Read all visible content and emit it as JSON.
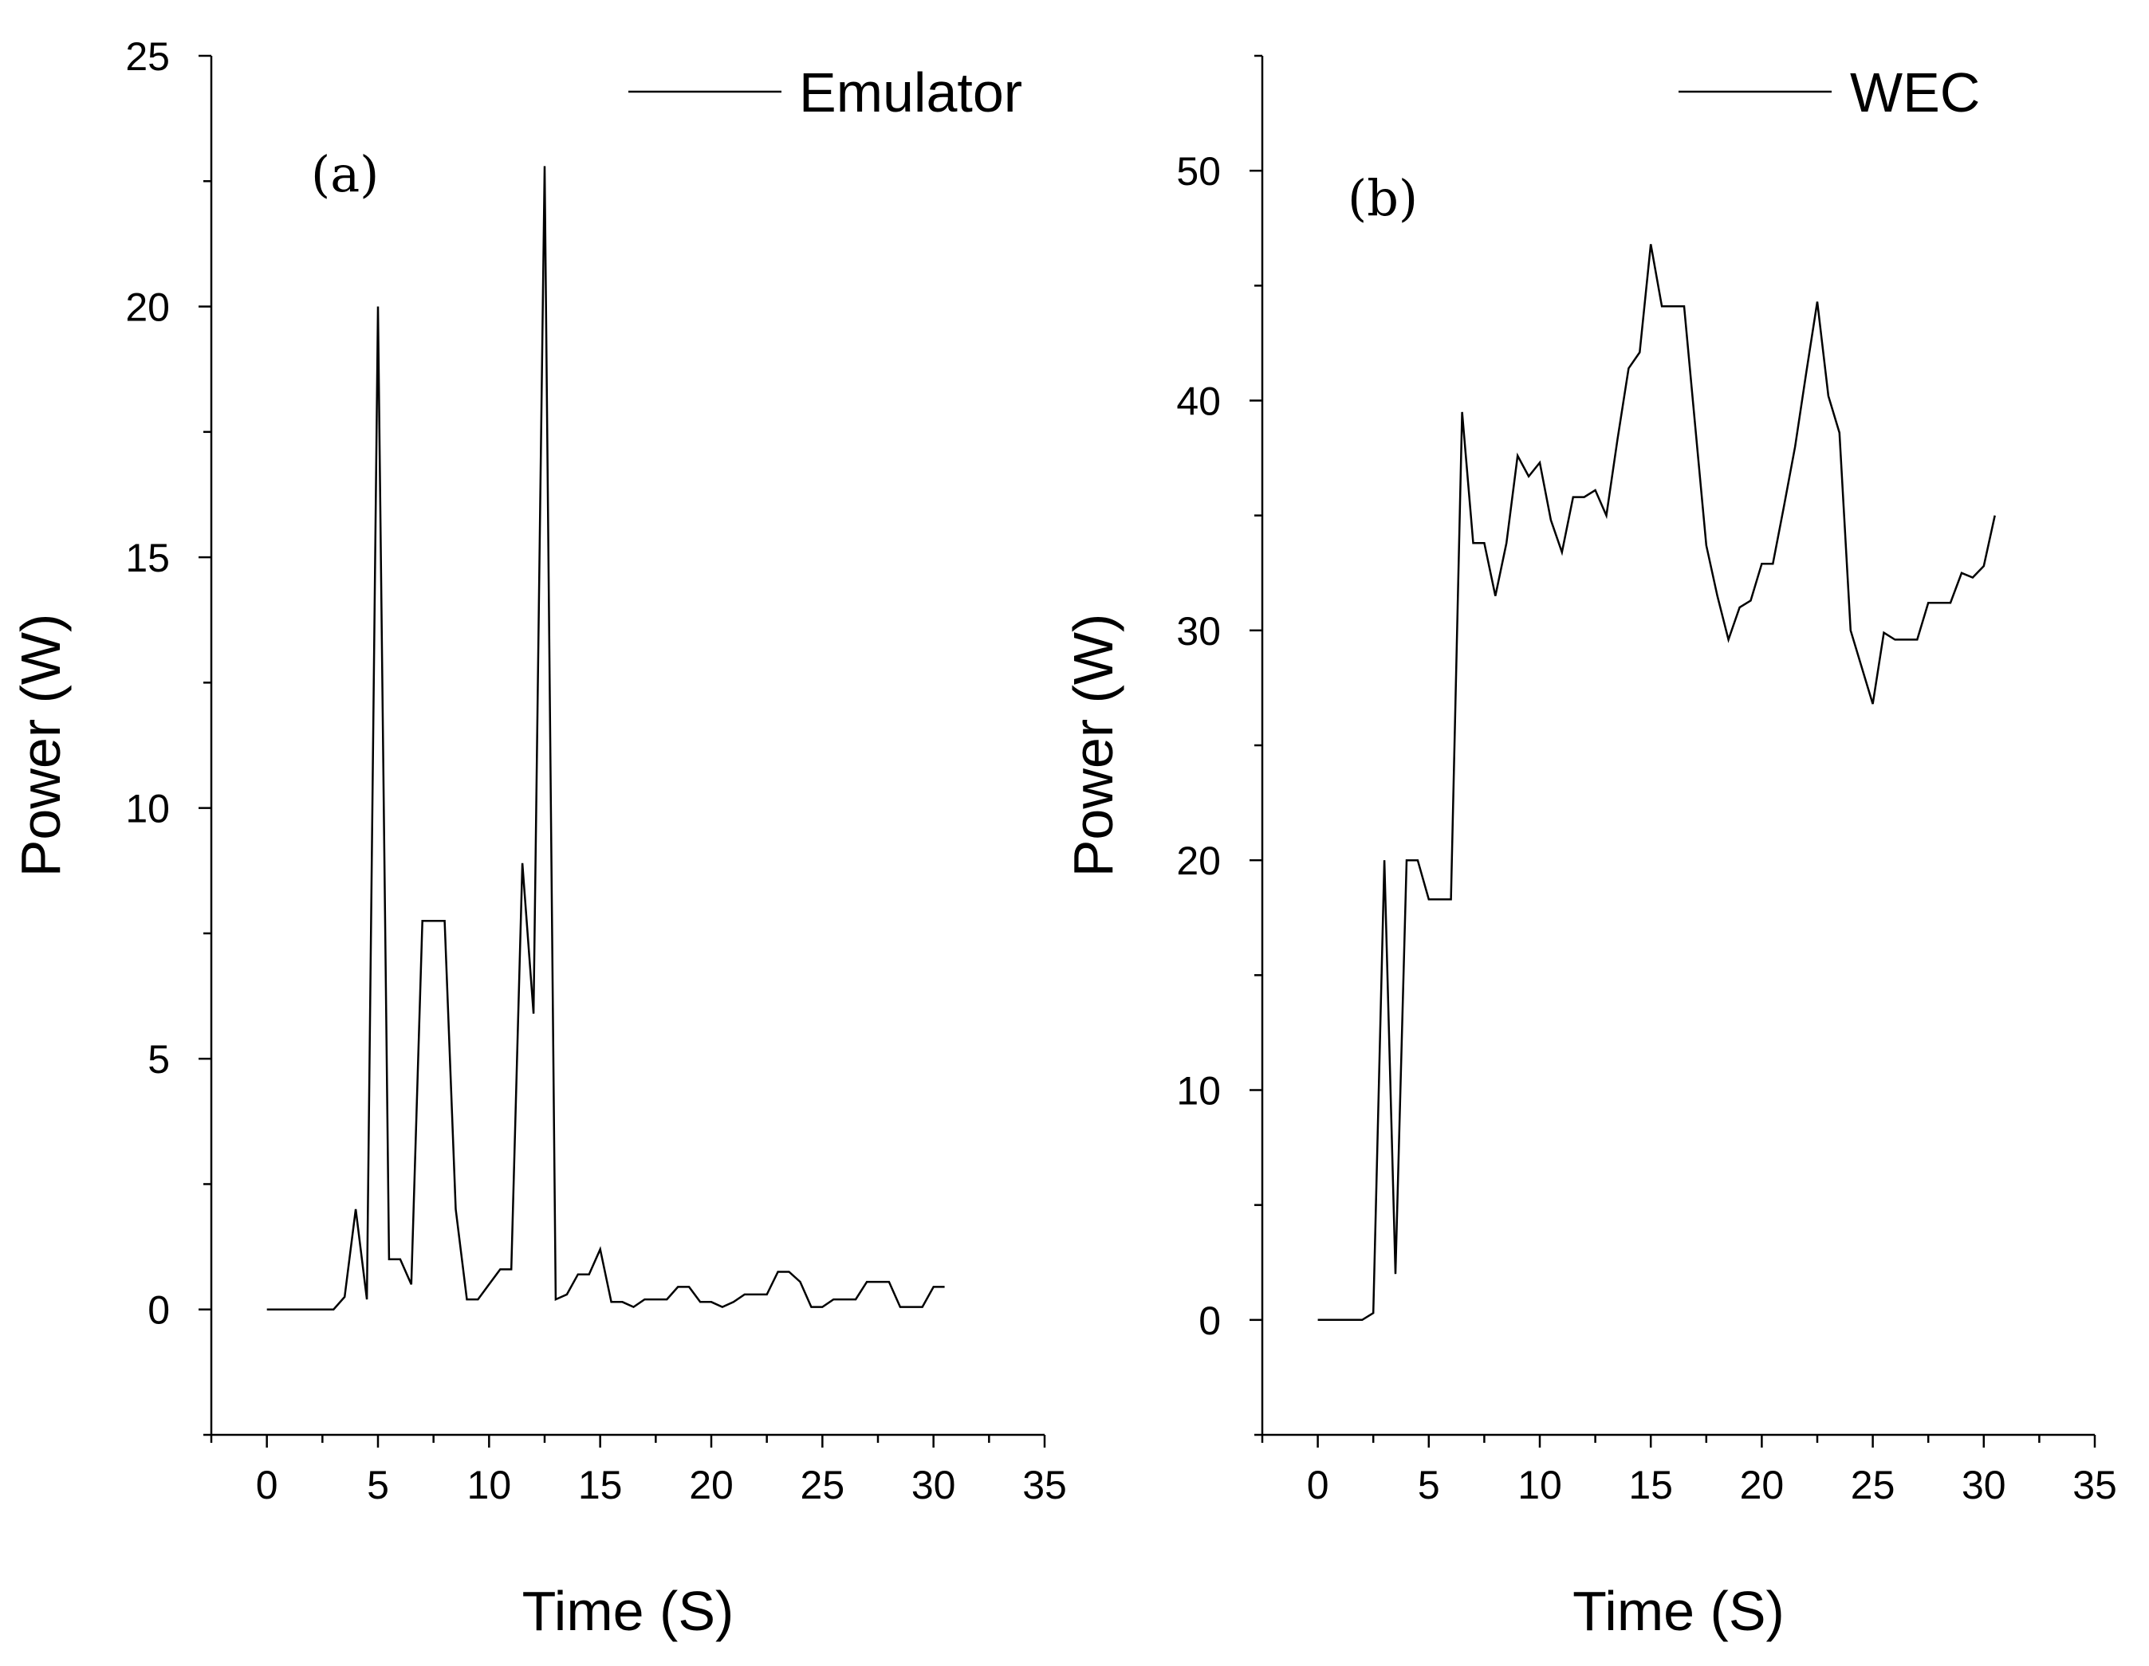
{
  "chart_data": [
    {
      "type": "line",
      "panel_label": "(a)",
      "xlabel": "Time (S)",
      "ylabel": "Power (W)",
      "xlim": [
        -2.5,
        35
      ],
      "ylim": [
        -2.5,
        25
      ],
      "xticks": [
        0,
        5,
        10,
        15,
        20,
        25,
        30,
        35
      ],
      "yticks": [
        0,
        5,
        10,
        15,
        20,
        25
      ],
      "xtick_labels": [
        "0",
        "5",
        "10",
        "15",
        "20",
        "25",
        "30",
        "35"
      ],
      "ytick_labels": [
        "0",
        "5",
        "10",
        "15",
        "20",
        "25"
      ],
      "legend_position": "top-right",
      "series": [
        {
          "name": "Emulator",
          "x": [
            0,
            0.5,
            1,
            1.5,
            2,
            2.5,
            3,
            3.5,
            4,
            4.5,
            5,
            5.5,
            6,
            6.5,
            7,
            7.5,
            8,
            8.5,
            9,
            9.5,
            10,
            10.5,
            11,
            11.5,
            12,
            12.5,
            13,
            13.5,
            14,
            14.5,
            15,
            15.5,
            16,
            16.5,
            17,
            17.5,
            18,
            18.5,
            19,
            19.5,
            20,
            20.5,
            21,
            21.5,
            22,
            22.5,
            23,
            23.5,
            24,
            24.5,
            25,
            25.5,
            26,
            26.5,
            27,
            27.5,
            28,
            28.5,
            29,
            29.5,
            30,
            30.5
          ],
          "y": [
            0,
            0,
            0,
            0,
            0,
            0,
            0,
            0.25,
            2.0,
            0.2,
            20.0,
            1.0,
            1.0,
            0.5,
            7.75,
            7.75,
            7.75,
            2.0,
            0.2,
            0.2,
            0.5,
            0.8,
            0.8,
            8.9,
            5.9,
            22.8,
            0.2,
            0.3,
            0.7,
            0.7,
            1.2,
            0.15,
            0.15,
            0.05,
            0.2,
            0.2,
            0.2,
            0.45,
            0.45,
            0.15,
            0.15,
            0.05,
            0.15,
            0.3,
            0.3,
            0.3,
            0.75,
            0.75,
            0.55,
            0.05,
            0.05,
            0.2,
            0.2,
            0.2,
            0.55,
            0.55,
            0.55,
            0.05,
            0.05,
            0.05,
            0.45,
            0.45
          ]
        }
      ]
    },
    {
      "type": "line",
      "panel_label": "(b)",
      "xlabel": "Time (S)",
      "ylabel": "Power (W)",
      "xlim": [
        -2.5,
        35
      ],
      "ylim": [
        -5,
        55
      ],
      "xticks": [
        0,
        5,
        10,
        15,
        20,
        25,
        30,
        35
      ],
      "yticks": [
        0,
        10,
        20,
        30,
        40,
        50
      ],
      "xtick_labels": [
        "0",
        "5",
        "10",
        "15",
        "20",
        "25",
        "30",
        "35"
      ],
      "ytick_labels": [
        "0",
        "10",
        "20",
        "30",
        "40",
        "50"
      ],
      "legend_position": "top-right",
      "series": [
        {
          "name": "WEC",
          "x": [
            0,
            0.5,
            1,
            1.5,
            2,
            2.5,
            3,
            3.5,
            4,
            4.5,
            5,
            5.5,
            6,
            6.5,
            7,
            7.5,
            8,
            8.5,
            9,
            9.5,
            10,
            10.5,
            11,
            11.5,
            12,
            12.5,
            13,
            13.5,
            14,
            14.5,
            15,
            15.5,
            16,
            16.5,
            17,
            17.5,
            18,
            18.5,
            19,
            19.5,
            20,
            20.5,
            21,
            21.5,
            22,
            22.5,
            23,
            23.5,
            24,
            24.5,
            25,
            25.5,
            26,
            26.5,
            27,
            27.5,
            28,
            28.5,
            29,
            29.5,
            30,
            30.5
          ],
          "y": [
            0,
            0,
            0,
            0,
            0,
            0.3,
            20.0,
            2.0,
            20.0,
            20.0,
            18.3,
            18.3,
            18.3,
            39.5,
            33.8,
            33.8,
            31.5,
            33.8,
            37.6,
            36.7,
            37.3,
            34.8,
            33.4,
            35.8,
            35.8,
            36.1,
            35.0,
            38.3,
            41.4,
            42.1,
            46.8,
            44.1,
            44.1,
            44.1,
            38.9,
            33.7,
            31.5,
            29.6,
            31.0,
            31.3,
            32.9,
            32.9,
            35.4,
            38.0,
            41.2,
            44.3,
            40.2,
            38.6,
            30.0,
            28.4,
            26.8,
            29.9,
            29.6,
            29.6,
            29.6,
            31.2,
            31.2,
            31.2,
            32.5,
            32.3,
            32.8,
            35.0
          ]
        }
      ]
    }
  ]
}
